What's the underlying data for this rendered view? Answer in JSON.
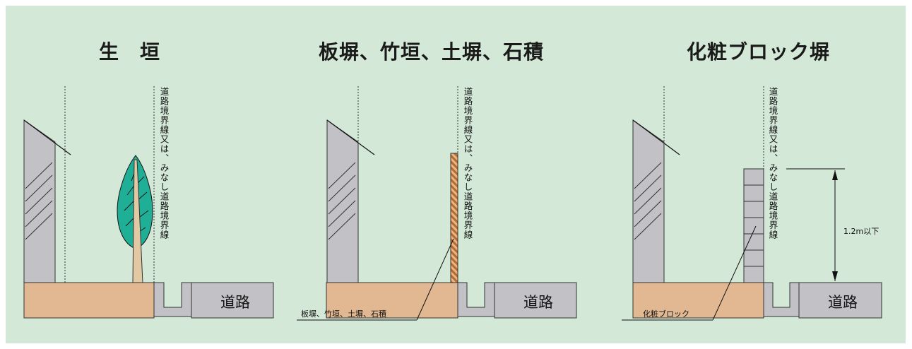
{
  "panels": [
    {
      "title": "生　垣",
      "boundary_label": "道路境界線又は、みなし道路境界線",
      "road_label": "道路"
    },
    {
      "title": "板塀、竹垣、土塀、石積",
      "boundary_label": "道路境界線又は、みなし道路境界線",
      "road_label": "道路",
      "material_label": "板塀、竹垣、土塀、石積"
    },
    {
      "title": "化粧ブロック塀",
      "boundary_label": "道路境界線又は、みなし道路境界線",
      "road_label": "道路",
      "material_label": "化粧ブロック",
      "height_label": "1.2m以下"
    }
  ],
  "colors": {
    "background": "#d3e8d6",
    "ground": "#e1b892",
    "building": "#c2c1c6",
    "tree_leaf": "#1fae96",
    "trunk": "#e3c8a4",
    "fence_stripe": "#c8772f",
    "block": "#c2c1c6"
  }
}
